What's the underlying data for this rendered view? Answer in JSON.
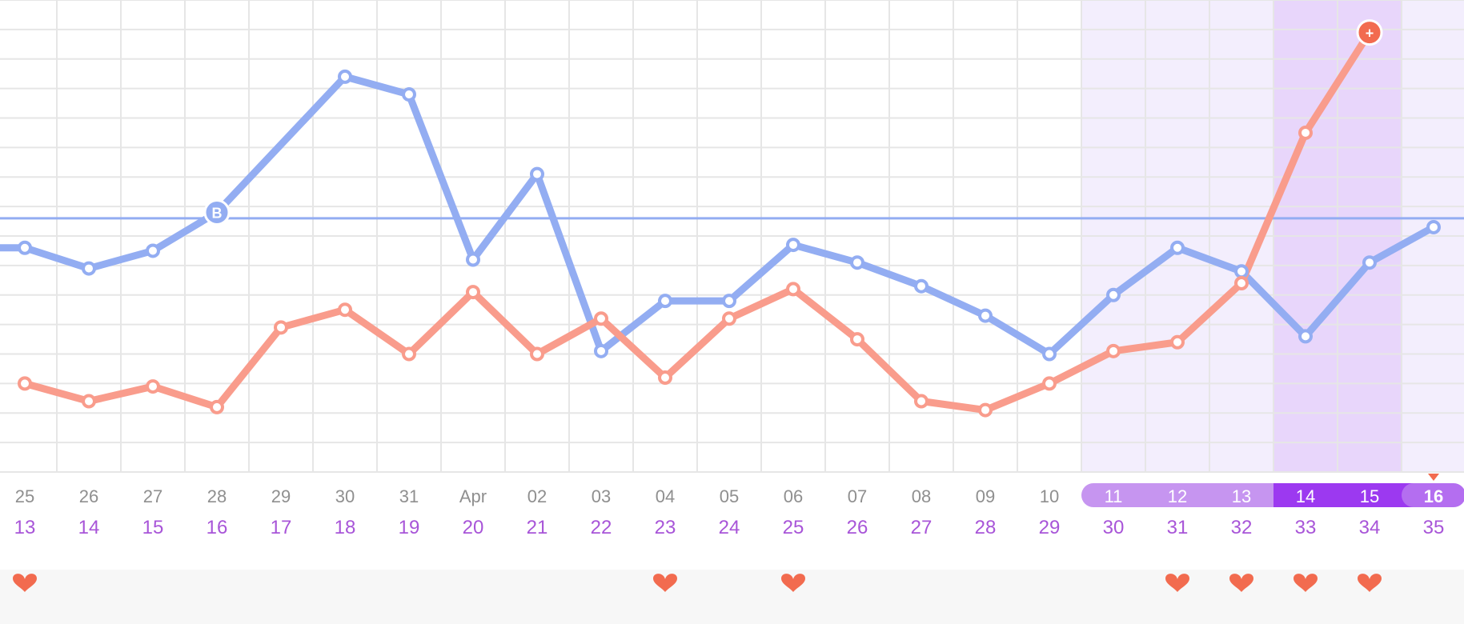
{
  "colors": {
    "series_a": "#93adf2",
    "series_b": "#f99c8c",
    "series_b_end": "#f26b4f",
    "fertile_window": "#f3eefd",
    "ovulation_window": "#e8d6fb",
    "fertile_pill": "#c695f0",
    "ovulation_pill": "#9c39f0",
    "today_pill": "#b46ef0",
    "day_text": "#a855d8",
    "date_text": "#8f8f8f",
    "heart": "#f26b4f",
    "grid": "#e6e6e6"
  },
  "icons": {
    "heart": "heart-icon",
    "marker_b": "b-marker-icon",
    "marker_plus": "plus-marker-icon",
    "today": "today-triangle-icon"
  },
  "chart_data": {
    "type": "line",
    "x_dates": [
      "25",
      "26",
      "27",
      "28",
      "29",
      "30",
      "31",
      "Apr",
      "02",
      "03",
      "04",
      "05",
      "06",
      "07",
      "08",
      "09",
      "10",
      "11",
      "12",
      "13",
      "14",
      "15",
      "16"
    ],
    "cycle_days": [
      "13",
      "14",
      "15",
      "16",
      "17",
      "18",
      "19",
      "20",
      "21",
      "22",
      "23",
      "24",
      "25",
      "26",
      "27",
      "28",
      "29",
      "30",
      "31",
      "32",
      "33",
      "34",
      "35"
    ],
    "series": [
      {
        "key": "a",
        "values": [
          6.6,
          5.9,
          6.5,
          7.8,
          null,
          12.4,
          11.8,
          6.2,
          9.1,
          3.1,
          4.8,
          4.8,
          6.7,
          6.1,
          5.3,
          4.3,
          3.0,
          5.0,
          6.6,
          5.8,
          3.6,
          6.1,
          7.3
        ],
        "line_points": [
          [
            -0.4,
            6.6
          ]
        ],
        "marker_index": 3,
        "marker_label": "B"
      },
      {
        "key": "b",
        "values": [
          2.0,
          1.4,
          1.9,
          1.2,
          3.9,
          4.5,
          3.0,
          5.1,
          3.0,
          4.2,
          2.2,
          4.2,
          5.2,
          3.5,
          1.4,
          1.1,
          2.0,
          3.1,
          3.4,
          5.4,
          10.5,
          13.9,
          null
        ],
        "marker_index": 21,
        "marker_label": "+"
      }
    ],
    "reference_line": 7.6,
    "ylim": [
      -1,
      15
    ],
    "grid": true,
    "fertile_window": [
      17,
      22
    ],
    "ovulation_window": [
      20,
      21
    ],
    "today_index": 22,
    "heart_indices": [
      0,
      10,
      12,
      18,
      19,
      20,
      21
    ]
  }
}
